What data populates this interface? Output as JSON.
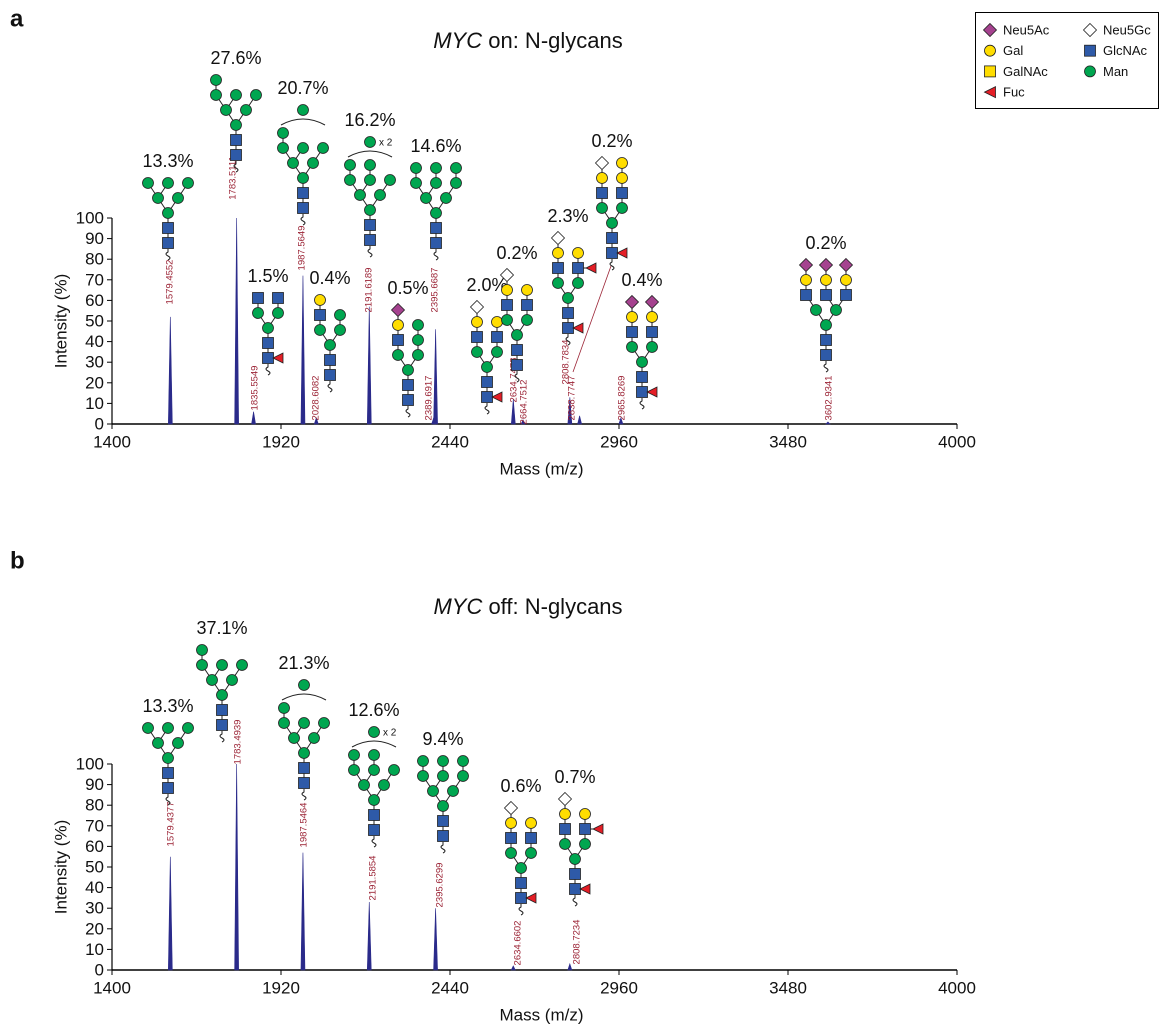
{
  "legend": {
    "items": [
      {
        "name": "Neu5Ac",
        "color": "#a5428f",
        "shape": "diamond"
      },
      {
        "name": "Gal",
        "color": "#ffdd00",
        "shape": "circle"
      },
      {
        "name": "GalNAc",
        "color": "#ffdd00",
        "shape": "square"
      },
      {
        "name": "Fuc",
        "color": "#e41e26",
        "shape": "triangle"
      },
      {
        "name": "Neu5Gc",
        "color": "#ffffff",
        "shape": "diamond"
      },
      {
        "name": "GlcNAc",
        "color": "#2e5aa8",
        "shape": "square"
      },
      {
        "name": "Man",
        "color": "#00a650",
        "shape": "circle"
      }
    ]
  },
  "chart_data": [
    {
      "type": "spectrum",
      "panel": "a",
      "title": "MYC on: N-glycans",
      "x_label": "Mass (m/z)",
      "y_label": "Intensity (%)",
      "color": "#2a2a8a",
      "xlim": [
        1400,
        4000
      ],
      "xticks": [
        1400,
        1920,
        2440,
        2960,
        3480,
        4000
      ],
      "ylim": [
        0,
        100
      ],
      "yticks": [
        0,
        10,
        20,
        30,
        40,
        50,
        60,
        70,
        80,
        90,
        100
      ],
      "x": [
        1579.4552,
        1783.5111,
        1835.5549,
        1987.5649,
        2028.6082,
        2191.6189,
        2389.6917,
        2395.6687,
        2634.7478,
        2664.7512,
        2808.7834,
        2838.7747,
        2965.8269,
        3602.9341
      ],
      "values": [
        52,
        100,
        6,
        72,
        3,
        57,
        3,
        46,
        12,
        2,
        13,
        4,
        3,
        1
      ],
      "abundance_labels": [
        "13.3%",
        "27.6%",
        "1.5%",
        "20.7%",
        "0.4%",
        "16.2%",
        "0.5%",
        "14.6%",
        "2.0%",
        "0.2%",
        "2.3%",
        "0.2%",
        "0.4%",
        "0.2%"
      ],
      "glycan_notes": [
        null,
        null,
        null,
        null,
        null,
        "x 2",
        null,
        null,
        null,
        null,
        null,
        null,
        null,
        null
      ]
    },
    {
      "type": "spectrum",
      "panel": "b",
      "title": "MYC off: N-glycans",
      "x_label": "Mass (m/z)",
      "y_label": "Intensity (%)",
      "color": "#2a2a8a",
      "xlim": [
        1400,
        4000
      ],
      "xticks": [
        1400,
        1920,
        2440,
        2960,
        3480,
        4000
      ],
      "ylim": [
        0,
        100
      ],
      "yticks": [
        0,
        10,
        20,
        30,
        40,
        50,
        60,
        70,
        80,
        90,
        100
      ],
      "x": [
        1579.4377,
        1783.4939,
        1987.5464,
        2191.5854,
        2395.6299,
        2634.6602,
        2808.7234
      ],
      "values": [
        55,
        100,
        57,
        33,
        30,
        2,
        3
      ],
      "abundance_labels": [
        "13.3%",
        "37.1%",
        "21.3%",
        "12.6%",
        "9.4%",
        "0.6%",
        "0.7%"
      ],
      "glycan_notes": [
        null,
        null,
        null,
        "x 2",
        null,
        null,
        null
      ]
    }
  ]
}
